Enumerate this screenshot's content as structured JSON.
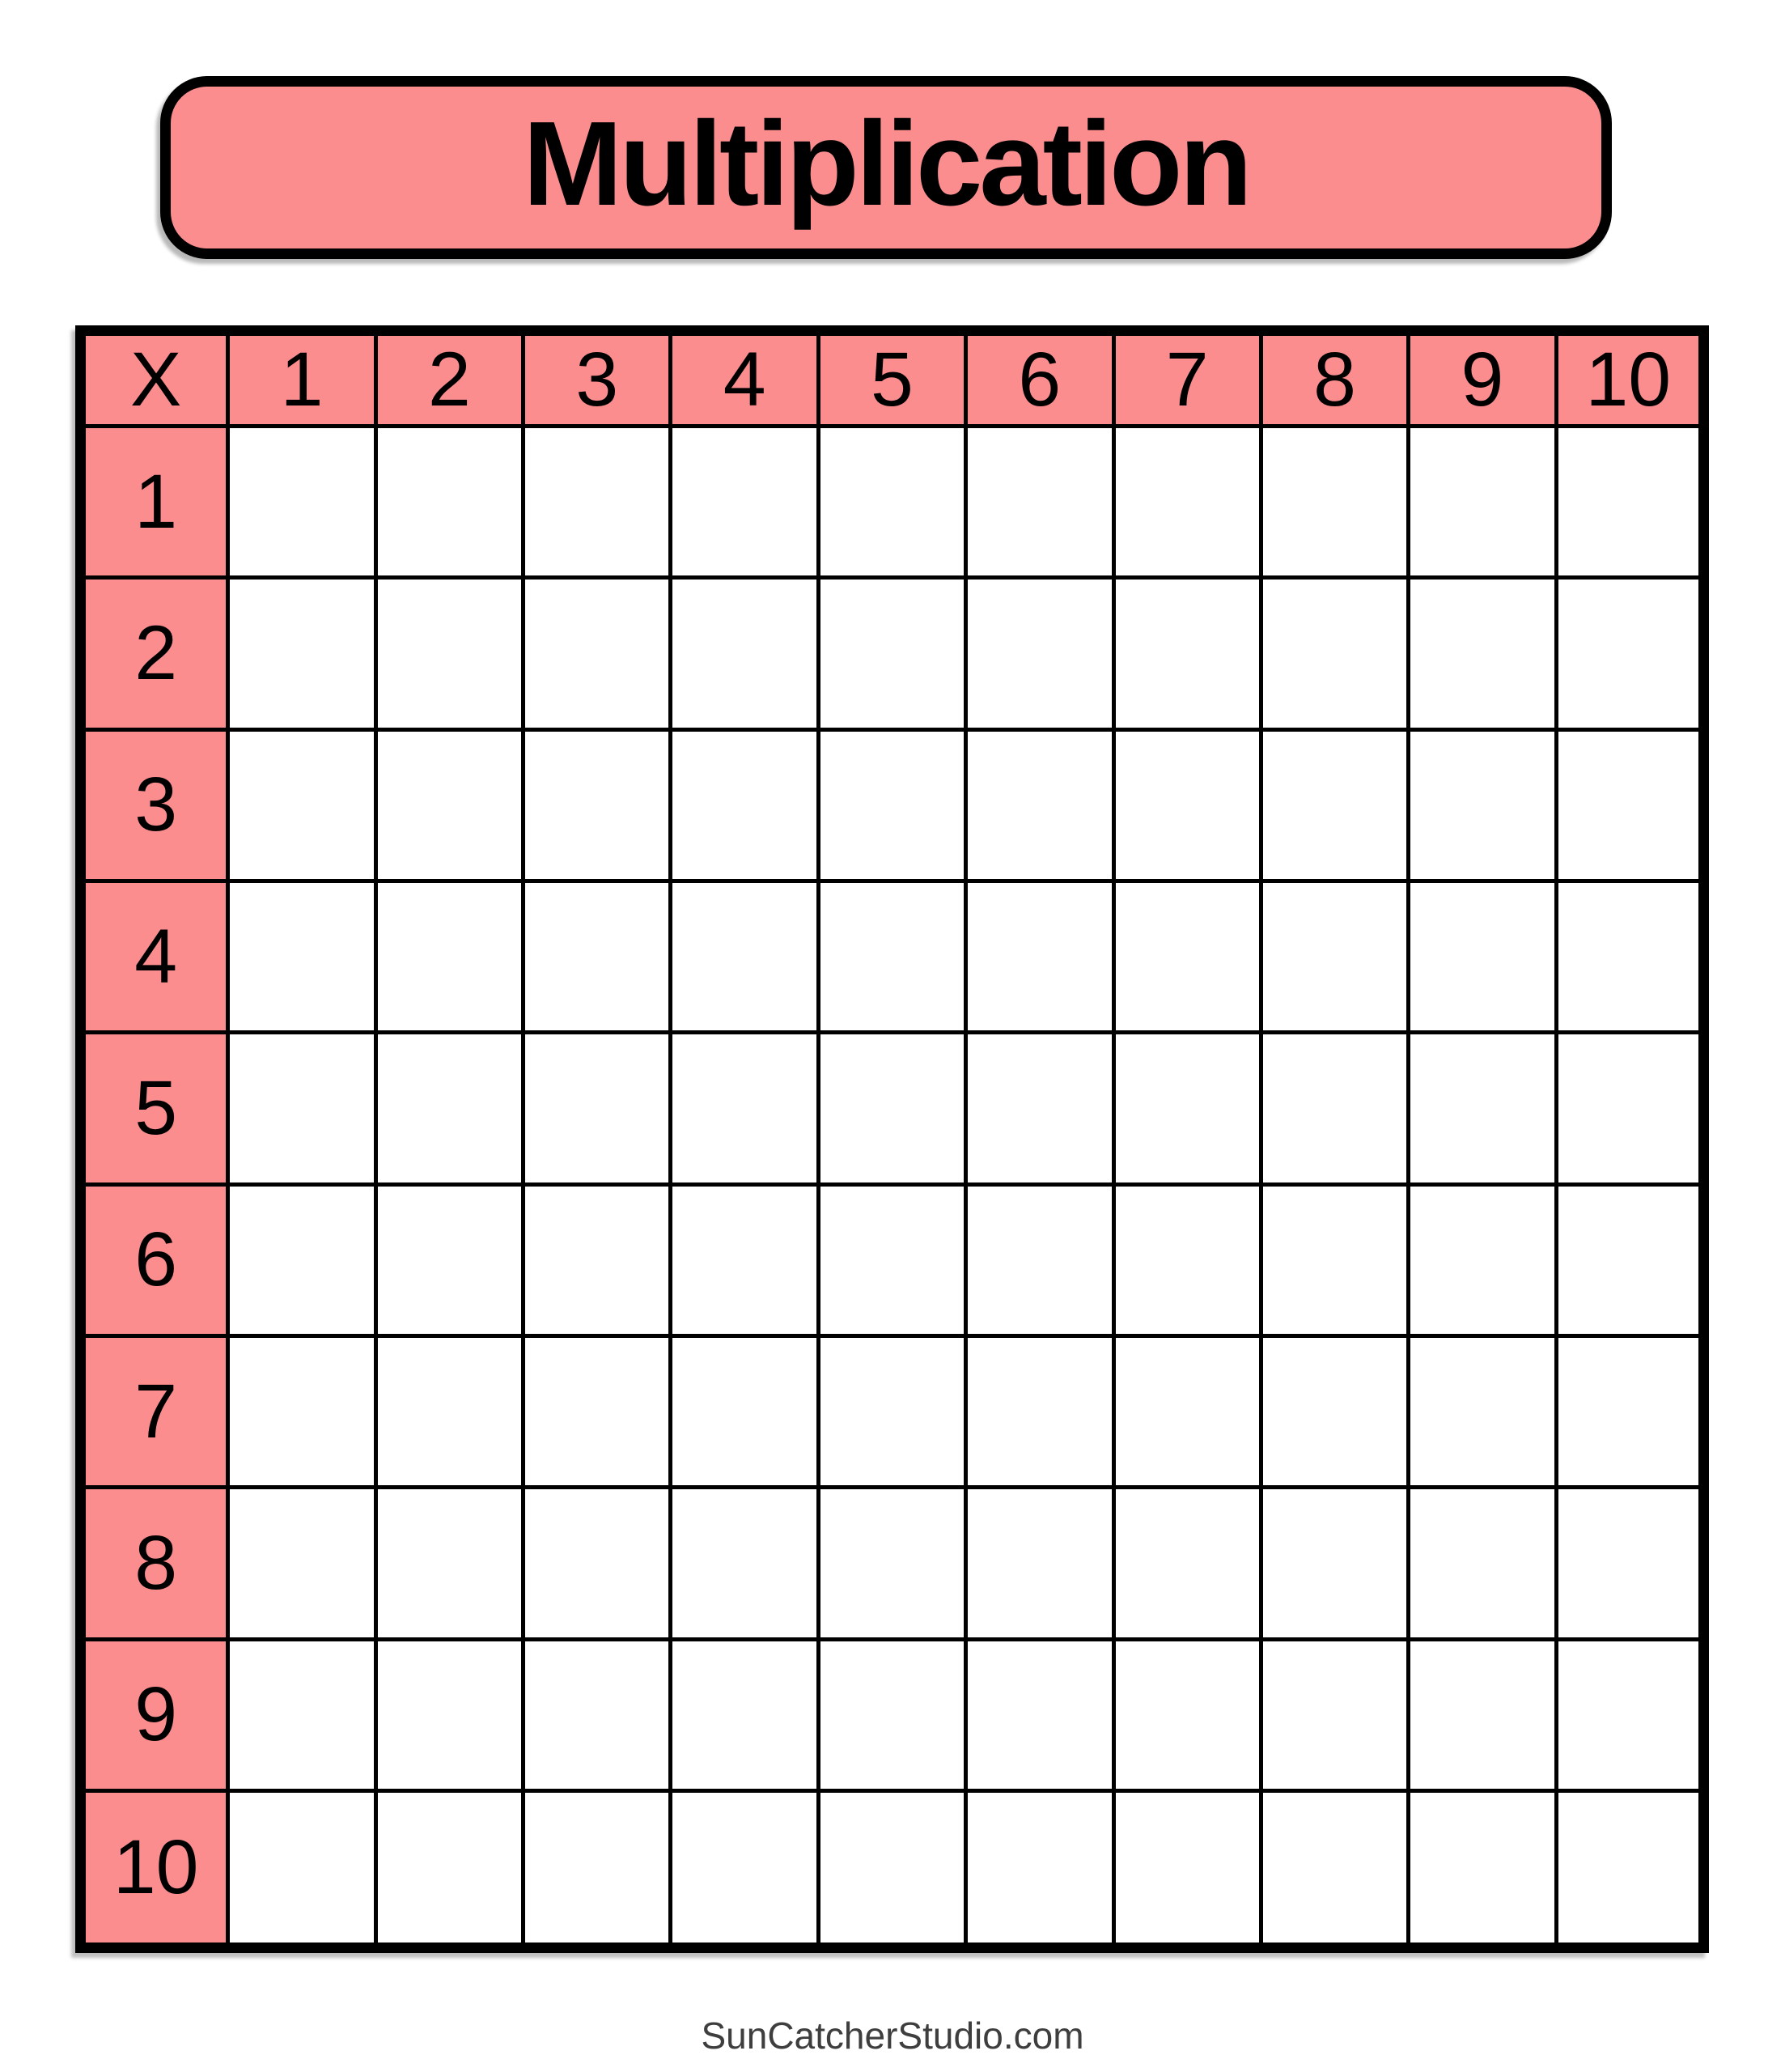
{
  "title": "Multiplication",
  "grid": {
    "corner_label": "X",
    "column_headers": [
      "1",
      "2",
      "3",
      "4",
      "5",
      "6",
      "7",
      "8",
      "9",
      "10"
    ],
    "row_headers": [
      "1",
      "2",
      "3",
      "4",
      "5",
      "6",
      "7",
      "8",
      "9",
      "10"
    ],
    "body_cells_empty": true
  },
  "footer": {
    "credit": "SunCatcherStudio.com"
  },
  "colors": {
    "header_fill": "#FB8D8E",
    "grid_line": "#000000",
    "title_text": "#000000",
    "footer_text": "#3E3E3E",
    "page_background": "#FFFFFF"
  }
}
